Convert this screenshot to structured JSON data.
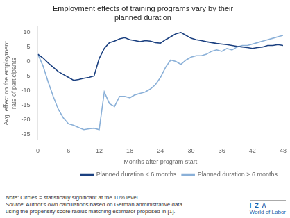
{
  "chart_data": {
    "type": "line",
    "title": "Employment effects of training programs vary by their\nplanned duration",
    "x_label": "Months after program start",
    "y_label": "Avg. effect on the employment\nrate of participants",
    "x": [
      0,
      1,
      2,
      3,
      4,
      5,
      6,
      7,
      8,
      9,
      10,
      11,
      12,
      13,
      14,
      15,
      16,
      17,
      18,
      19,
      20,
      21,
      22,
      23,
      24,
      25,
      26,
      27,
      28,
      29,
      30,
      31,
      32,
      33,
      34,
      35,
      36,
      37,
      38,
      39,
      40,
      41,
      42,
      43,
      44,
      45,
      46,
      47,
      48
    ],
    "series": [
      {
        "name": "Planned duration < 6 months",
        "color": "#1b4080",
        "marker": "none",
        "line_style": "solid",
        "values": [
          2.5,
          1.2,
          -0.5,
          -2.0,
          -3.5,
          -4.5,
          -5.5,
          -6.5,
          -6.2,
          -5.8,
          -5.5,
          -5.0,
          1.0,
          4.5,
          6.5,
          7.0,
          7.8,
          8.2,
          7.5,
          7.2,
          6.8,
          7.2,
          7.0,
          6.5,
          6.3,
          7.5,
          8.5,
          9.5,
          10.0,
          9.0,
          8.0,
          7.5,
          7.2,
          6.8,
          6.5,
          6.2,
          6.0,
          5.8,
          5.5,
          5.2,
          5.0,
          4.8,
          4.5,
          4.8,
          5.0,
          5.5,
          5.5,
          5.8,
          5.5
        ]
      },
      {
        "name": "Planned duration > 6 months",
        "color": "#8ab0d8",
        "marker": "none",
        "line_style": "solid",
        "values": [
          2.5,
          -1.5,
          -7.0,
          -12.0,
          -16.5,
          -19.5,
          -21.5,
          -22.0,
          -22.8,
          -23.5,
          -23.2,
          -23.0,
          -23.5,
          -10.5,
          -14.5,
          -15.5,
          -12.0,
          -12.0,
          -12.5,
          -11.5,
          -11.0,
          -10.5,
          -9.5,
          -8.0,
          -5.5,
          -2.0,
          0.5,
          0.0,
          -1.0,
          0.5,
          1.5,
          2.0,
          2.0,
          2.5,
          3.5,
          4.0,
          3.5,
          4.5,
          4.0,
          5.0,
          5.5,
          5.5,
          6.0,
          6.5,
          7.0,
          7.5,
          8.0,
          8.5,
          9.0
        ]
      }
    ],
    "xlim": [
      0,
      48
    ],
    "xticks": [
      0,
      6,
      12,
      18,
      24,
      30,
      36,
      42,
      48
    ],
    "ylim": [
      -27,
      12
    ],
    "yticks": [
      -25,
      -20,
      -15,
      -10,
      -5,
      0,
      5,
      10
    ],
    "grid": false,
    "legend": "bottom",
    "annotations": [
      "Note: Circles = statistically significant at the 10% level.",
      "Source: Author's own calculations based on German administrative data\nusing the propensity score radius matching estimator proposed in [1].",
      "I  Z  A",
      "World of Labor"
    ]
  }
}
